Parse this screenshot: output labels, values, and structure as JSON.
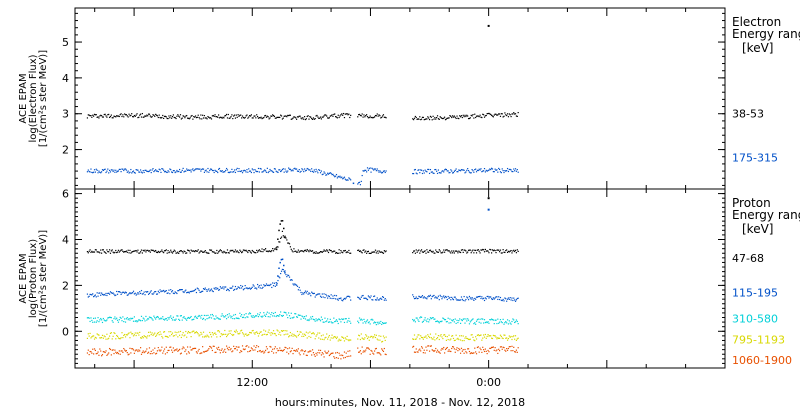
{
  "xlabel": "hours:minutes, Nov. 11, 2018 - Nov. 12, 2018",
  "x_ticks": [
    {
      "label": "12:00",
      "hour": 12
    },
    {
      "label": "0:00",
      "hour": 24
    }
  ],
  "chart_data": [
    {
      "type": "scatter",
      "id": "electron",
      "ylabel": [
        "ACE EPAM",
        "log(Electron Flux)",
        "[1/(cm²s ster MeV)]"
      ],
      "ylim": [
        0.9,
        5.95
      ],
      "y_ticks": [
        2,
        3,
        4,
        5
      ],
      "xlim_hours": [
        3,
        36
      ],
      "legend_title": [
        "Electron",
        "Energy range"
      ],
      "legend_unit": "[keV]",
      "series": [
        {
          "name": "38-53",
          "color": "#000000",
          "legend_y": 3.0,
          "points": [
            [
              3.6,
              2.95
            ],
            [
              6,
              2.97
            ],
            [
              9,
              2.92
            ],
            [
              11,
              2.94
            ],
            [
              13,
              2.93
            ],
            [
              15,
              2.9
            ],
            [
              16.5,
              2.97
            ],
            [
              17.6,
              2.95
            ],
            [
              18.5,
              2.95
            ],
            [
              20.3,
              2.88
            ],
            [
              22.5,
              2.92
            ],
            [
              24,
              2.97
            ],
            [
              25.5,
              3.0
            ],
            [
              24,
              5.45
            ]
          ]
        },
        {
          "name": "175-315",
          "color": "#0050c8",
          "legend_y": 1.78,
          "points": [
            [
              3.6,
              1.42
            ],
            [
              6,
              1.42
            ],
            [
              9,
              1.44
            ],
            [
              12,
              1.43
            ],
            [
              15,
              1.45
            ],
            [
              17.6,
              1.46
            ],
            [
              18.5,
              1.42
            ],
            [
              20.3,
              1.4
            ],
            [
              22.5,
              1.42
            ],
            [
              24,
              1.44
            ],
            [
              25.5,
              1.42
            ],
            [
              17.5,
              1.08
            ]
          ]
        }
      ]
    },
    {
      "type": "scatter",
      "id": "proton",
      "ylabel": [
        "ACE EPAM",
        "log(Proton Flux)",
        "[1/(cm²s ster MeV)]"
      ],
      "ylim": [
        -1.6,
        6.2
      ],
      "y_ticks": [
        0,
        2,
        4,
        6
      ],
      "xlim_hours": [
        3,
        36
      ],
      "legend_title": [
        "Proton",
        "Energy range"
      ],
      "legend_unit": "[keV]",
      "series": [
        {
          "name": "47-68",
          "color": "#000000",
          "legend_y": 3.2,
          "points": [
            [
              3.6,
              3.5
            ],
            [
              6,
              3.5
            ],
            [
              9,
              3.5
            ],
            [
              12,
              3.5
            ],
            [
              13.2,
              3.6
            ],
            [
              13.5,
              4.3
            ],
            [
              14,
              3.55
            ],
            [
              15,
              3.5
            ],
            [
              17.6,
              3.5
            ],
            [
              18.5,
              3.48
            ],
            [
              20.3,
              3.5
            ],
            [
              22.5,
              3.5
            ],
            [
              24,
              3.52
            ],
            [
              25.5,
              3.5
            ],
            [
              24,
              5.8
            ]
          ]
        },
        {
          "name": "115-195",
          "color": "#0050c8",
          "legend_y": 1.7,
          "points": [
            [
              3.6,
              1.6
            ],
            [
              6,
              1.7
            ],
            [
              9,
              1.8
            ],
            [
              12,
              1.95
            ],
            [
              13.2,
              2.05
            ],
            [
              13.5,
              2.7
            ],
            [
              14.5,
              1.7
            ],
            [
              16.5,
              1.45
            ],
            [
              17.6,
              1.5
            ],
            [
              18.5,
              1.45
            ],
            [
              20.3,
              1.55
            ],
            [
              22.5,
              1.45
            ],
            [
              24,
              1.45
            ],
            [
              25.5,
              1.4
            ],
            [
              24,
              5.3
            ]
          ]
        },
        {
          "name": "310-580",
          "color": "#00d0d8",
          "legend_y": 0.55,
          "points": [
            [
              3.6,
              0.5
            ],
            [
              6,
              0.55
            ],
            [
              9,
              0.62
            ],
            [
              12,
              0.72
            ],
            [
              13.2,
              0.78
            ],
            [
              15,
              0.6
            ],
            [
              16.5,
              0.45
            ],
            [
              17.6,
              0.5
            ],
            [
              18.5,
              0.4
            ],
            [
              20.3,
              0.55
            ],
            [
              22.5,
              0.45
            ],
            [
              24,
              0.45
            ],
            [
              25.5,
              0.45
            ]
          ]
        },
        {
          "name": "795-1193",
          "color": "#d8d800",
          "legend_y": -0.35,
          "points": [
            [
              3.6,
              -0.2
            ],
            [
              6,
              -0.15
            ],
            [
              9,
              -0.1
            ],
            [
              12,
              -0.05
            ],
            [
              13.2,
              -0.05
            ],
            [
              15,
              -0.15
            ],
            [
              16.5,
              -0.3
            ],
            [
              17.6,
              -0.2
            ],
            [
              18.5,
              -0.3
            ],
            [
              20.3,
              -0.2
            ],
            [
              22.5,
              -0.25
            ],
            [
              24,
              -0.25
            ],
            [
              25.5,
              -0.25
            ]
          ]
        },
        {
          "name": "1060-1900",
          "color": "#e85000",
          "legend_y": -1.25,
          "points": [
            [
              3.6,
              -0.9
            ],
            [
              6,
              -0.85
            ],
            [
              9,
              -0.8
            ],
            [
              12,
              -0.75
            ],
            [
              13.2,
              -0.8
            ],
            [
              15,
              -0.9
            ],
            [
              16.5,
              -1.05
            ],
            [
              17.6,
              -0.8
            ],
            [
              18.5,
              -0.85
            ],
            [
              20.3,
              -0.75
            ],
            [
              22.5,
              -0.8
            ],
            [
              24,
              -0.8
            ],
            [
              25.5,
              -0.75
            ]
          ]
        }
      ]
    }
  ]
}
